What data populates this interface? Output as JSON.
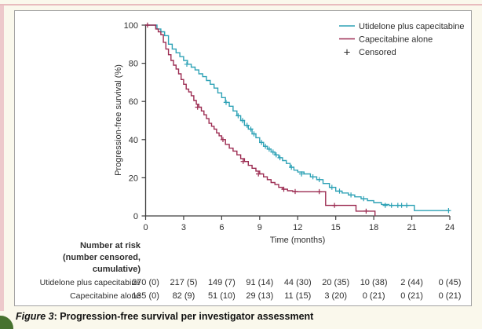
{
  "caption": {
    "figure_label": "Figure 3",
    "text": ": Progression-free survival per investigator assessment"
  },
  "colors": {
    "teal": "#2ea2b6",
    "maroon": "#9c2c52",
    "axis": "#3f3f3f",
    "page_bg": "#faf8ec",
    "panel_bg": "#ffffff",
    "panel_border": "#a3a3a3",
    "pink_strip": "#edc9cb",
    "green_corner": "#46722f"
  },
  "chart_data": {
    "type": "line",
    "subtype": "kaplan-meier-step",
    "title": "",
    "xlabel": "Time (months)",
    "ylabel": "Progression-free survival (%)",
    "xlim": [
      0,
      24
    ],
    "ylim": [
      0,
      100
    ],
    "x_ticks": [
      0,
      3,
      6,
      9,
      12,
      15,
      18,
      21,
      24
    ],
    "y_ticks": [
      0,
      20,
      40,
      60,
      80,
      100
    ],
    "grid": false,
    "legend_position": "top-right-inside",
    "legend": [
      {
        "label": "Utidelone plus capecitabine",
        "color": "#2ea2b6"
      },
      {
        "label": "Capecitabine alone",
        "color": "#9c2c52"
      },
      {
        "label": "Censored",
        "marker": "+"
      }
    ],
    "series": [
      {
        "name": "Utidelone plus capecitabine",
        "color": "#2ea2b6",
        "step": [
          [
            0,
            100
          ],
          [
            0.9,
            98
          ],
          [
            1.2,
            96.5
          ],
          [
            1.5,
            94.5
          ],
          [
            1.8,
            90
          ],
          [
            2.1,
            87.5
          ],
          [
            2.4,
            85.5
          ],
          [
            2.7,
            83.5
          ],
          [
            3,
            81.5
          ],
          [
            3.3,
            79.5
          ],
          [
            3.6,
            78
          ],
          [
            3.9,
            76.5
          ],
          [
            4.2,
            74.5
          ],
          [
            4.5,
            73
          ],
          [
            4.8,
            71
          ],
          [
            5.1,
            69
          ],
          [
            5.4,
            67
          ],
          [
            5.7,
            64.5
          ],
          [
            6,
            62
          ],
          [
            6.3,
            59.5
          ],
          [
            6.6,
            57.5
          ],
          [
            6.9,
            55
          ],
          [
            7.2,
            52.5
          ],
          [
            7.5,
            50
          ],
          [
            7.8,
            47.5
          ],
          [
            8.1,
            45.5
          ],
          [
            8.4,
            43
          ],
          [
            8.7,
            41
          ],
          [
            9,
            38.5
          ],
          [
            9.3,
            36.5
          ],
          [
            9.6,
            35
          ],
          [
            9.9,
            33.5
          ],
          [
            10.2,
            32
          ],
          [
            10.5,
            30.5
          ],
          [
            10.8,
            29
          ],
          [
            11.1,
            27.5
          ],
          [
            11.4,
            25.5
          ],
          [
            11.7,
            24
          ],
          [
            12,
            23
          ],
          [
            12.5,
            22
          ],
          [
            13,
            20.5
          ],
          [
            13.5,
            19
          ],
          [
            14,
            17
          ],
          [
            14.5,
            15
          ],
          [
            15,
            13
          ],
          [
            15.5,
            12
          ],
          [
            16,
            11
          ],
          [
            16.5,
            10
          ],
          [
            17,
            9
          ],
          [
            17.5,
            8
          ],
          [
            18,
            7
          ],
          [
            18.6,
            6
          ],
          [
            19.2,
            5.5
          ],
          [
            21.2,
            2.8
          ],
          [
            24,
            2.8
          ]
        ],
        "censors": [
          [
            3.25,
            79.5
          ],
          [
            6.35,
            59.5
          ],
          [
            7.3,
            52.5
          ],
          [
            7.65,
            50
          ],
          [
            8,
            47.5
          ],
          [
            8.3,
            45.5
          ],
          [
            8.55,
            43
          ],
          [
            9.15,
            38.5
          ],
          [
            9.45,
            36.5
          ],
          [
            9.75,
            35
          ],
          [
            10.05,
            33.5
          ],
          [
            10.3,
            32
          ],
          [
            10.6,
            30.5
          ],
          [
            11.5,
            25.5
          ],
          [
            12.3,
            22
          ],
          [
            13.2,
            20.5
          ],
          [
            13.7,
            19
          ],
          [
            14.7,
            15
          ],
          [
            15.3,
            13
          ],
          [
            16.2,
            11
          ],
          [
            17.2,
            9
          ],
          [
            18.9,
            5.5
          ],
          [
            19.4,
            5.5
          ],
          [
            19.9,
            5.5
          ],
          [
            20.2,
            5.5
          ],
          [
            20.6,
            5.5
          ],
          [
            23.9,
            2.8
          ]
        ]
      },
      {
        "name": "Capecitabine alone",
        "color": "#9c2c52",
        "step": [
          [
            0,
            100
          ],
          [
            0.8,
            98
          ],
          [
            1,
            96.5
          ],
          [
            1.2,
            95
          ],
          [
            1.4,
            91
          ],
          [
            1.6,
            87.5
          ],
          [
            1.8,
            84.5
          ],
          [
            2,
            81.5
          ],
          [
            2.2,
            79
          ],
          [
            2.4,
            77
          ],
          [
            2.6,
            74.5
          ],
          [
            2.8,
            71.5
          ],
          [
            3,
            69
          ],
          [
            3.2,
            66.5
          ],
          [
            3.4,
            65
          ],
          [
            3.6,
            63
          ],
          [
            3.8,
            60.5
          ],
          [
            4,
            58.5
          ],
          [
            4.2,
            57
          ],
          [
            4.4,
            55
          ],
          [
            4.6,
            53
          ],
          [
            4.8,
            51
          ],
          [
            5,
            48.5
          ],
          [
            5.2,
            47
          ],
          [
            5.4,
            45.5
          ],
          [
            5.6,
            43.5
          ],
          [
            5.8,
            42
          ],
          [
            6,
            40
          ],
          [
            6.3,
            37.5
          ],
          [
            6.6,
            35.5
          ],
          [
            6.9,
            34
          ],
          [
            7.2,
            32
          ],
          [
            7.5,
            30
          ],
          [
            7.8,
            28.5
          ],
          [
            8.1,
            26.5
          ],
          [
            8.4,
            25
          ],
          [
            8.7,
            23.5
          ],
          [
            9,
            22
          ],
          [
            9.3,
            20.5
          ],
          [
            9.6,
            19
          ],
          [
            9.9,
            17.5
          ],
          [
            10.2,
            16.5
          ],
          [
            10.5,
            15
          ],
          [
            10.8,
            14
          ],
          [
            11.2,
            13.2
          ],
          [
            11.6,
            12.8
          ],
          [
            12,
            12.7
          ],
          [
            14.2,
            5.5
          ],
          [
            16.6,
            2.5
          ],
          [
            18.1,
            0
          ]
        ],
        "censors": [
          [
            0.15,
            100
          ],
          [
            4.1,
            57
          ],
          [
            6.1,
            40
          ],
          [
            7.7,
            28.5
          ],
          [
            8.9,
            22
          ],
          [
            10.9,
            14
          ],
          [
            11.8,
            12.8
          ],
          [
            13.7,
            12.7
          ],
          [
            14.9,
            5.5
          ],
          [
            17.4,
            2.5
          ]
        ]
      }
    ],
    "number_at_risk": {
      "header": [
        "Number at risk",
        "(number censored,",
        "cumulative)"
      ],
      "times": [
        0,
        3,
        6,
        9,
        12,
        15,
        18,
        21,
        24
      ],
      "rows": [
        {
          "label": "Utidelone plus capecitabine",
          "values": [
            "270 (0)",
            "217 (5)",
            "149 (7)",
            "91 (14)",
            "44 (30)",
            "20 (35)",
            "10 (38)",
            "2 (44)",
            "0 (45)"
          ]
        },
        {
          "label": "Capecitabine alone",
          "values": [
            "135 (0)",
            "82 (9)",
            "51 (10)",
            "29 (13)",
            "11 (15)",
            "3 (20)",
            "0 (21)",
            "0 (21)",
            "0 (21)"
          ]
        }
      ]
    }
  }
}
